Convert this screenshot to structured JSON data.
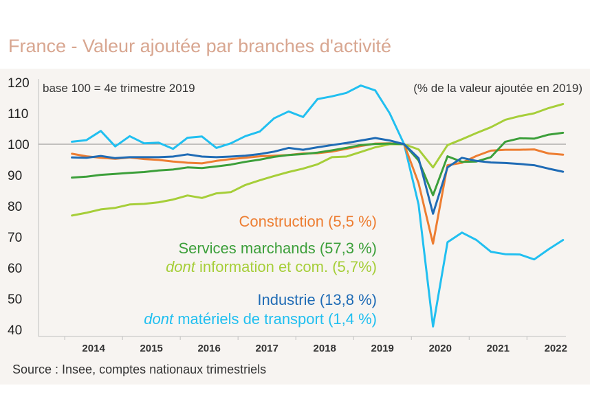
{
  "title": "France - Valeur ajoutée par branches d'activité",
  "source": "Source : Insee, comptes nationaux trimestriels",
  "chart_data": {
    "type": "line",
    "title": "France - Valeur ajoutée par branches d'activité",
    "base_note": "base 100 = 4e trimestre 2019",
    "share_note": "(% de la valeur ajoutée en 2019)",
    "ylim": [
      40,
      120
    ],
    "yticks": [
      120,
      110,
      100,
      90,
      80,
      70,
      60,
      50,
      40
    ],
    "reference_line": 100,
    "x_labels": [
      "2014",
      "2015",
      "2016",
      "2017",
      "2018",
      "2019",
      "2020",
      "2021",
      "2022"
    ],
    "x_start": 2014.0,
    "x_step": 0.25,
    "series": [
      {
        "name": "materiels_transport",
        "label_prefix": "dont",
        "label_rest": " matériels de transport (1,4 %)",
        "color": "#21bff0",
        "values": [
          100.8,
          101.3,
          104.3,
          99.3,
          102.6,
          100.3,
          100.5,
          98.5,
          102.1,
          102.5,
          98.8,
          100.3,
          102.6,
          104.1,
          108.4,
          110.6,
          108.8,
          114.6,
          115.5,
          116.6,
          119.0,
          117.4,
          110.0,
          100.0,
          80.5,
          41.0,
          68.3,
          71.4,
          69.0,
          65.2,
          64.4,
          64.3,
          62.7,
          66.0,
          69.0
        ]
      },
      {
        "name": "information_com",
        "label_prefix": "dont",
        "label_rest": " information et com. (5,7%)",
        "color": "#a6ce39",
        "values": [
          76.9,
          77.8,
          78.9,
          79.4,
          80.5,
          80.7,
          81.2,
          82.1,
          83.4,
          82.6,
          84.1,
          84.5,
          86.8,
          88.3,
          89.7,
          91.0,
          92.1,
          93.5,
          95.8,
          96.0,
          97.5,
          99.0,
          100.0,
          100.0,
          98.3,
          92.5,
          99.7,
          101.6,
          103.6,
          105.5,
          107.9,
          109.1,
          110.0,
          111.7,
          113.0
        ]
      },
      {
        "name": "construction",
        "label": "Construction (5,5 %)",
        "color": "#ed7d31",
        "values": [
          96.9,
          96.1,
          95.6,
          95.3,
          95.7,
          95.2,
          94.9,
          94.4,
          94.0,
          93.8,
          94.6,
          95.2,
          95.6,
          96.1,
          96.3,
          96.5,
          97.0,
          97.1,
          97.6,
          98.5,
          99.4,
          100.2,
          100.3,
          100.0,
          87.4,
          67.8,
          93.2,
          94.0,
          96.2,
          97.9,
          98.2,
          98.2,
          98.3,
          97.0,
          96.6
        ]
      },
      {
        "name": "services_marchands",
        "label": "Services marchands (57,3 %)",
        "color": "#3c9f3a",
        "values": [
          89.2,
          89.5,
          90.1,
          90.4,
          90.7,
          91.0,
          91.5,
          91.8,
          92.5,
          92.3,
          92.8,
          93.4,
          94.3,
          95.0,
          95.9,
          96.5,
          96.8,
          97.3,
          98.0,
          98.8,
          99.7,
          100.1,
          100.2,
          100.0,
          94.7,
          83.5,
          96.1,
          94.3,
          94.4,
          95.8,
          100.8,
          101.9,
          101.8,
          103.1,
          103.7
        ]
      },
      {
        "name": "industrie",
        "label": "Industrie (13,8 %)",
        "color": "#1f6bb5",
        "values": [
          95.7,
          95.6,
          96.2,
          95.5,
          95.8,
          95.8,
          95.8,
          96.0,
          96.7,
          96.0,
          95.8,
          96.0,
          96.3,
          96.8,
          97.6,
          98.8,
          98.2,
          99.0,
          99.7,
          100.4,
          101.2,
          102.0,
          101.2,
          100.0,
          95.5,
          77.5,
          92.5,
          95.6,
          94.6,
          94.1,
          93.9,
          93.6,
          93.2,
          92.1,
          91.1
        ]
      }
    ]
  }
}
